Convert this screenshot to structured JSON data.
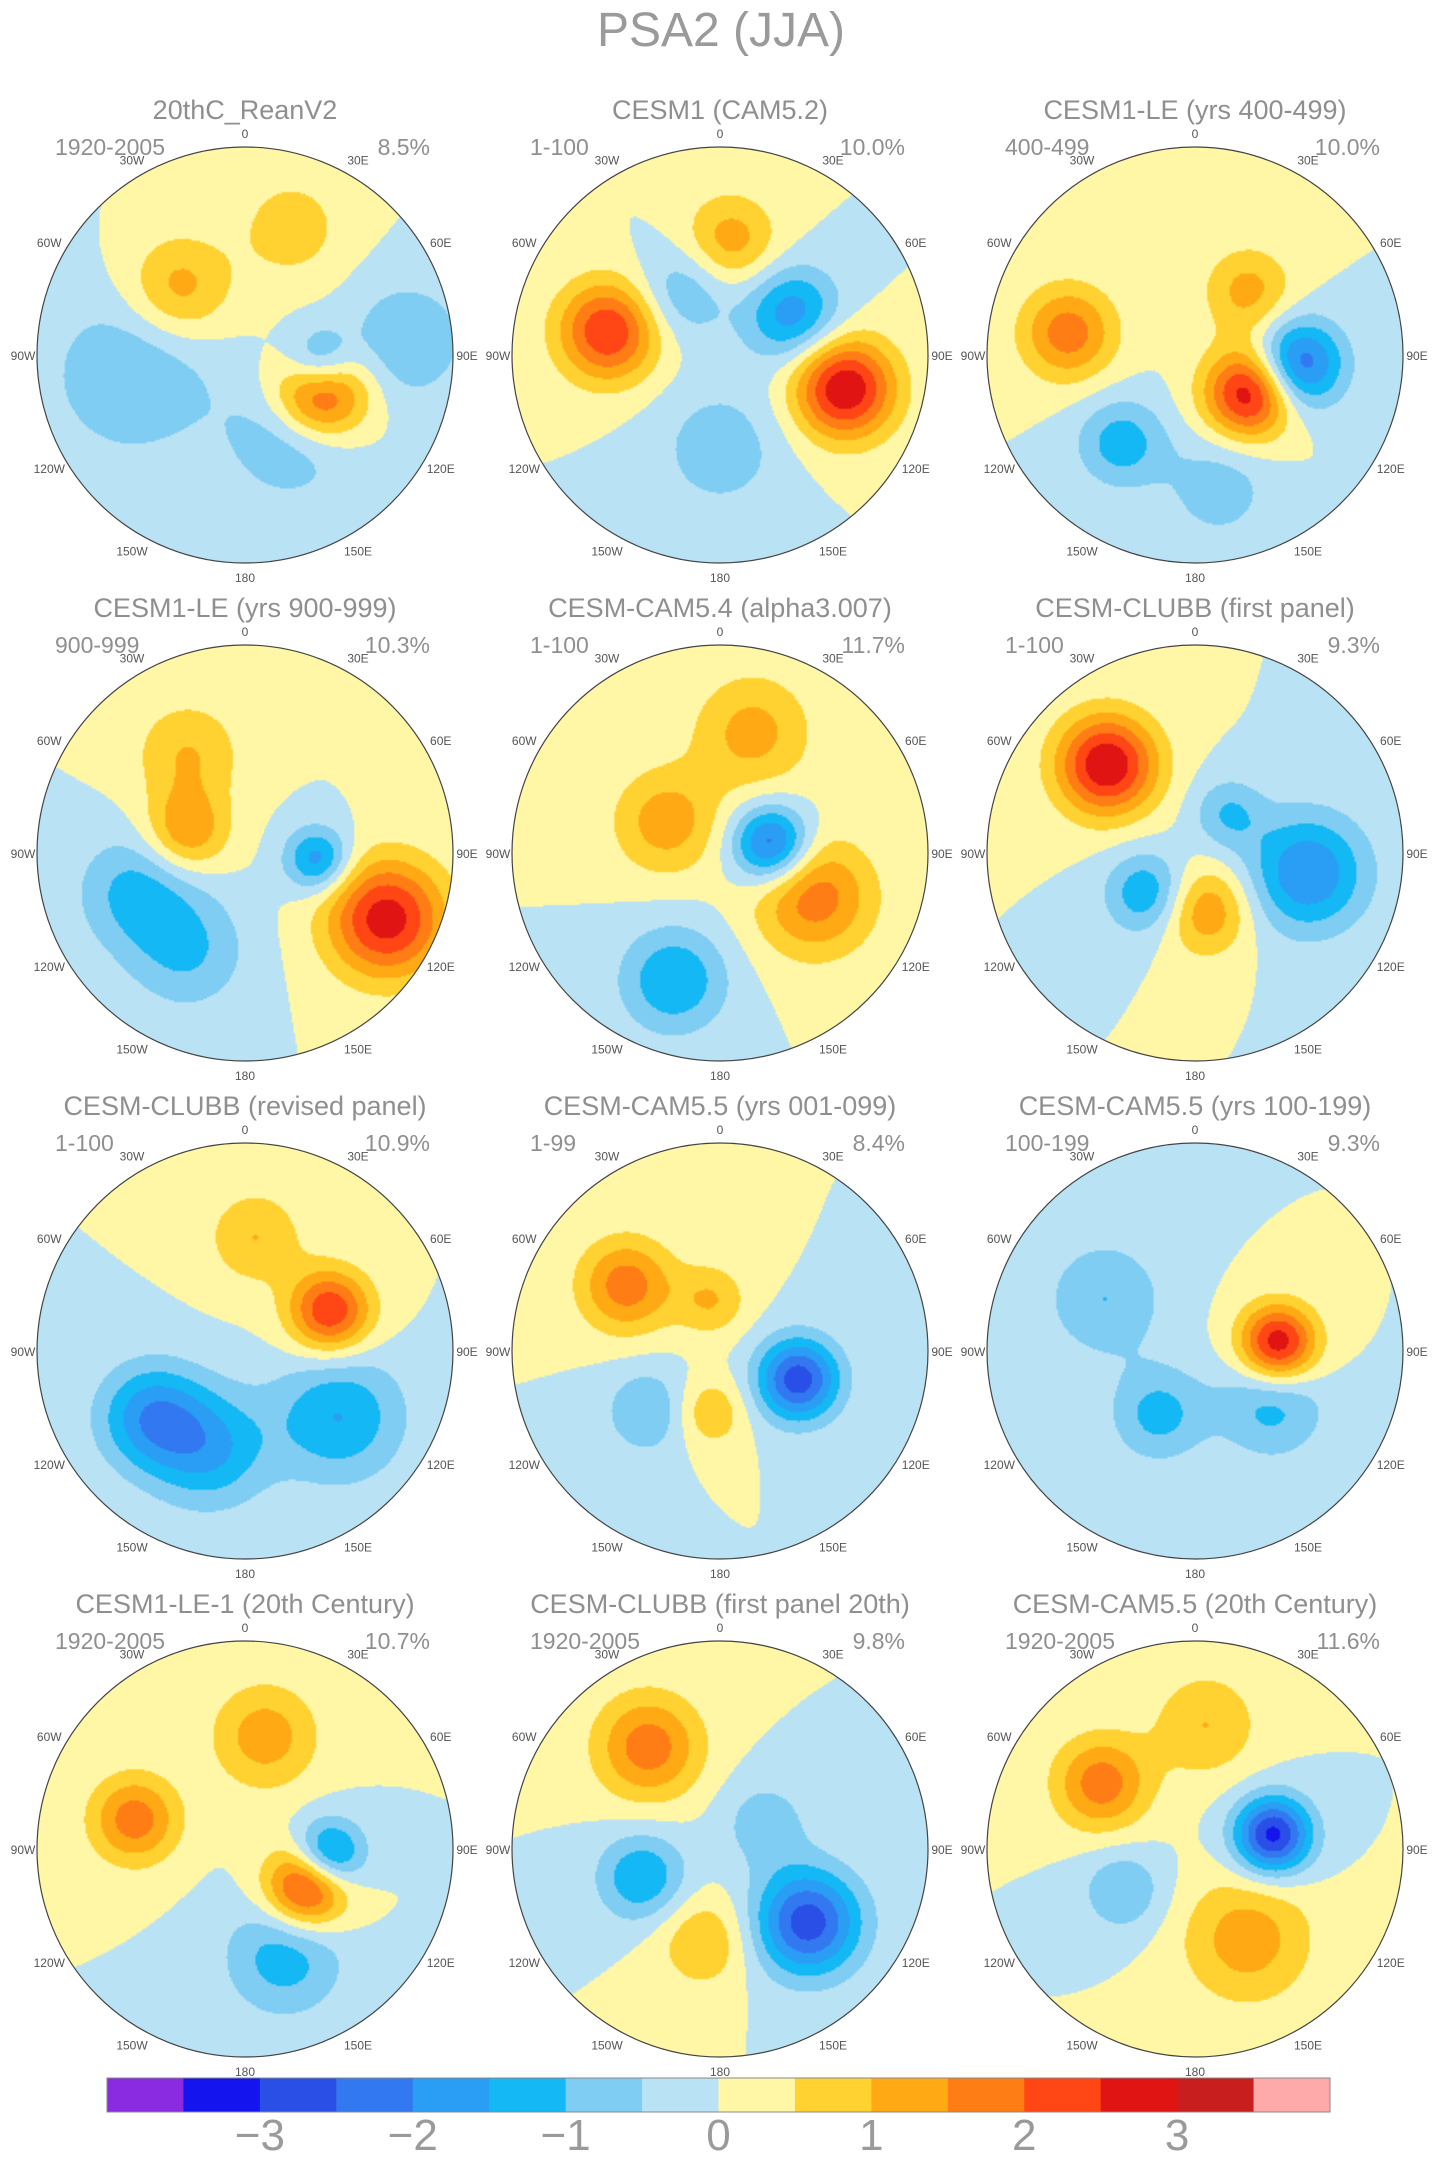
{
  "figure": {
    "title": "PSA2 (JJA)"
  },
  "chart_data": {
    "type": "heatmap",
    "projection": "south-polar-stereographic",
    "title": "PSA2 (JJA)",
    "grid": false,
    "legend": "bottom",
    "lon_labels": [
      "0",
      "30E",
      "60E",
      "90E",
      "120E",
      "150E",
      "180",
      "150W",
      "120W",
      "90W",
      "60W",
      "30W"
    ],
    "colorbar": {
      "levels": [
        -3.5,
        -3,
        -2.5,
        -2,
        -1.5,
        -1,
        -0.5,
        0,
        0.5,
        1,
        1.5,
        2,
        2.5,
        3,
        3.5
      ],
      "tick_labels": [
        "−3",
        "−2",
        "−1",
        "0",
        "1",
        "2",
        "3"
      ],
      "tick_values": [
        -3,
        -2,
        -1,
        0,
        1,
        2,
        3
      ],
      "colors": [
        "#8a2be2",
        "#1414ee",
        "#2a4fe6",
        "#3278f0",
        "#2a9df5",
        "#14b8f5",
        "#7fcdf2",
        "#b9e2f5",
        "#fff7a6",
        "#ffd232",
        "#ffaa14",
        "#ff7d14",
        "#ff4614",
        "#e11414",
        "#c81e1e",
        "#ffaaaa"
      ]
    },
    "panels": [
      {
        "title": "20thC_ReanV2",
        "period": "1920-2005",
        "variance": "8.5%",
        "anomalies": [
          {
            "lon": 115,
            "r": 0.4,
            "a": 3.0,
            "s": 0.16
          },
          {
            "lon": 95,
            "r": 0.36,
            "a": -2.0,
            "s": 0.12
          },
          {
            "lon": 85,
            "r": 0.78,
            "a": -1.0,
            "s": 0.2
          },
          {
            "lon": 150,
            "r": 0.45,
            "a": -1.0,
            "s": 0.22
          },
          {
            "lon": -45,
            "r": 0.45,
            "a": 1.3,
            "s": 0.18
          },
          {
            "lon": -100,
            "r": 0.55,
            "a": -1.0,
            "s": 0.28
          },
          {
            "lon": 20,
            "r": 0.65,
            "a": 0.8,
            "s": 0.18
          }
        ]
      },
      {
        "title": "CESM1 (CAM5.2)",
        "period": "1-100",
        "variance": "10.0%",
        "anomalies": [
          {
            "lon": 105,
            "r": 0.62,
            "a": 3.0,
            "s": 0.17
          },
          {
            "lon": -78,
            "r": 0.55,
            "a": 2.5,
            "s": 0.17
          },
          {
            "lon": 60,
            "r": 0.4,
            "a": -1.8,
            "s": 0.16
          },
          {
            "lon": 5,
            "r": 0.55,
            "a": 1.3,
            "s": 0.16
          },
          {
            "lon": -30,
            "r": 0.35,
            "a": -1.0,
            "s": 0.16
          },
          {
            "lon": 180,
            "r": 0.45,
            "a": -0.8,
            "s": 0.22
          }
        ]
      },
      {
        "title": "CESM1-LE (yrs 400-499)",
        "period": "400-499",
        "variance": "10.0%",
        "anomalies": [
          {
            "lon": 95,
            "r": 0.5,
            "a": -2.5,
            "s": 0.15
          },
          {
            "lon": 125,
            "r": 0.32,
            "a": 3.0,
            "s": 0.15
          },
          {
            "lon": -80,
            "r": 0.62,
            "a": 1.8,
            "s": 0.16
          },
          {
            "lon": -140,
            "r": 0.55,
            "a": -1.3,
            "s": 0.15
          },
          {
            "lon": 40,
            "r": 0.4,
            "a": 1.2,
            "s": 0.15
          },
          {
            "lon": 170,
            "r": 0.65,
            "a": -0.8,
            "s": 0.18
          }
        ]
      },
      {
        "title": "CESM1-LE (yrs 900-999)",
        "period": "900-999",
        "variance": "10.3%",
        "anomalies": [
          {
            "lon": 115,
            "r": 0.75,
            "a": 2.8,
            "s": 0.2
          },
          {
            "lon": 95,
            "r": 0.35,
            "a": -1.8,
            "s": 0.11
          },
          {
            "lon": -70,
            "r": 0.3,
            "a": 1.5,
            "s": 0.14
          },
          {
            "lon": -110,
            "r": 0.55,
            "a": -1.2,
            "s": 0.2
          },
          {
            "lon": -150,
            "r": 0.55,
            "a": -1.0,
            "s": 0.2
          },
          {
            "lon": -30,
            "r": 0.55,
            "a": 1.0,
            "s": 0.18
          }
        ]
      },
      {
        "title": "CESM-CAM5.4 (alpha3.007)",
        "period": "1-100",
        "variance": "11.7%",
        "anomalies": [
          {
            "lon": 80,
            "r": 0.25,
            "a": -2.5,
            "s": 0.13
          },
          {
            "lon": 115,
            "r": 0.5,
            "a": 1.8,
            "s": 0.2
          },
          {
            "lon": -160,
            "r": 0.65,
            "a": -1.5,
            "s": 0.18
          },
          {
            "lon": -60,
            "r": 0.3,
            "a": 1.3,
            "s": 0.18
          },
          {
            "lon": 15,
            "r": 0.6,
            "a": 1.2,
            "s": 0.2
          }
        ]
      },
      {
        "title": "CESM-CLUBB (first panel)",
        "period": "1-100",
        "variance": "9.3%",
        "anomalies": [
          {
            "lon": -45,
            "r": 0.6,
            "a": 3.0,
            "s": 0.17
          },
          {
            "lon": 100,
            "r": 0.55,
            "a": -2.0,
            "s": 0.2
          },
          {
            "lon": 170,
            "r": 0.28,
            "a": 1.5,
            "s": 0.15
          },
          {
            "lon": -130,
            "r": 0.3,
            "a": -1.5,
            "s": 0.14
          },
          {
            "lon": 40,
            "r": 0.25,
            "a": -1.0,
            "s": 0.12
          }
        ]
      },
      {
        "title": "CESM-CLUBB (revised panel)",
        "period": "1-100",
        "variance": "10.9%",
        "anomalies": [
          {
            "lon": 65,
            "r": 0.45,
            "a": 2.5,
            "s": 0.14
          },
          {
            "lon": -160,
            "r": 0.5,
            "a": -1.5,
            "s": 0.2
          },
          {
            "lon": 125,
            "r": 0.55,
            "a": -1.5,
            "s": 0.22
          },
          {
            "lon": -125,
            "r": 0.55,
            "a": -1.8,
            "s": 0.18
          },
          {
            "lon": 5,
            "r": 0.55,
            "a": 1.0,
            "s": 0.16
          }
        ]
      },
      {
        "title": "CESM-CAM5.5 (yrs 001-099)",
        "period": "1-99",
        "variance": "8.4%",
        "anomalies": [
          {
            "lon": 110,
            "r": 0.4,
            "a": -2.8,
            "s": 0.14
          },
          {
            "lon": -55,
            "r": 0.55,
            "a": 1.8,
            "s": 0.16
          },
          {
            "lon": -10,
            "r": 0.25,
            "a": 1.0,
            "s": 0.12
          },
          {
            "lon": -170,
            "r": 0.3,
            "a": 1.0,
            "s": 0.12
          },
          {
            "lon": -130,
            "r": 0.45,
            "a": -1.0,
            "s": 0.15
          }
        ]
      },
      {
        "title": "CESM-CAM5.5 (yrs 100-199)",
        "period": "100-199",
        "variance": "9.3%",
        "anomalies": [
          {
            "lon": 85,
            "r": 0.4,
            "a": 3.0,
            "s": 0.13
          },
          {
            "lon": 125,
            "r": 0.45,
            "a": -1.2,
            "s": 0.18
          },
          {
            "lon": -60,
            "r": 0.5,
            "a": -1.0,
            "s": 0.2
          },
          {
            "lon": -150,
            "r": 0.35,
            "a": -1.2,
            "s": 0.16
          }
        ]
      },
      {
        "title": "CESM1-LE-1 (20th Century)",
        "period": "1920-2005",
        "variance": "10.7%",
        "anomalies": [
          {
            "lon": 95,
            "r": 0.4,
            "a": -2.5,
            "s": 0.12
          },
          {
            "lon": 120,
            "r": 0.35,
            "a": 3.0,
            "s": 0.14
          },
          {
            "lon": -75,
            "r": 0.55,
            "a": 1.8,
            "s": 0.15
          },
          {
            "lon": 160,
            "r": 0.55,
            "a": -1.3,
            "s": 0.2
          },
          {
            "lon": 10,
            "r": 0.55,
            "a": 1.3,
            "s": 0.18
          }
        ]
      },
      {
        "title": "CESM-CLUBB (first panel 20th)",
        "period": "1920-2005",
        "variance": "9.8%",
        "anomalies": [
          {
            "lon": 130,
            "r": 0.55,
            "a": -2.8,
            "s": 0.18
          },
          {
            "lon": -35,
            "r": 0.6,
            "a": 1.8,
            "s": 0.18
          },
          {
            "lon": -110,
            "r": 0.4,
            "a": -1.5,
            "s": 0.15
          },
          {
            "lon": 60,
            "r": 0.25,
            "a": -0.8,
            "s": 0.15
          },
          {
            "lon": -170,
            "r": 0.45,
            "a": 1.0,
            "s": 0.16
          }
        ]
      },
      {
        "title": "CESM-CAM5.5 (20th Century)",
        "period": "1920-2005",
        "variance": "11.6%",
        "anomalies": [
          {
            "lon": 80,
            "r": 0.38,
            "a": -3.2,
            "s": 0.13
          },
          {
            "lon": -55,
            "r": 0.55,
            "a": 1.8,
            "s": 0.16
          },
          {
            "lon": 150,
            "r": 0.5,
            "a": 1.3,
            "s": 0.22
          },
          {
            "lon": -120,
            "r": 0.4,
            "a": -1.0,
            "s": 0.14
          },
          {
            "lon": 5,
            "r": 0.6,
            "a": 1.0,
            "s": 0.18
          }
        ]
      }
    ]
  }
}
